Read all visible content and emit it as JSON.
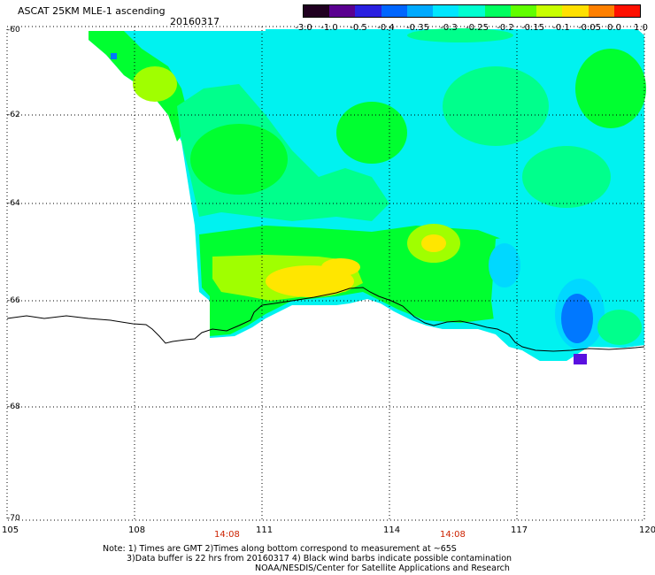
{
  "product_title": "ASCAT 25KM MLE-1 ascending",
  "date": "20160317",
  "colorbar": {
    "labels": [
      "-3.0",
      "-1.0",
      "-0.5",
      "-0.4",
      "-0.35",
      "-0.3",
      "-0.25",
      "-0.2",
      "-0.15",
      "-0.1",
      "-0.05",
      "0.0",
      "1.0"
    ],
    "colors": [
      "#200020",
      "#5a0090",
      "#2a20e0",
      "#0066ff",
      "#00aaff",
      "#00e6ff",
      "#00ffd0",
      "#00ff60",
      "#60ff00",
      "#c8ff00",
      "#ffe000",
      "#ff8000",
      "#ff1000"
    ]
  },
  "axes": {
    "lat_labels": [
      "-60",
      "-62",
      "-64",
      "-66",
      "-68",
      "-70"
    ],
    "lon_labels": [
      "105",
      "108",
      "111",
      "114",
      "117",
      "120"
    ]
  },
  "pass_times": [
    "14:08",
    "14:08"
  ],
  "notes": {
    "line1": "Note: 1) Times are GMT 2)Times along bottom correspond to measurement at ~65S",
    "line2": "3)Data buffer is 22 hrs from 20160317 4) Black wind barbs indicate possible contamination",
    "line3": "NOAA/NESDIS/Center for Satellite Applications and Research"
  },
  "field_legend": {
    "palette": {
      "cyan": "#00ffe6",
      "aqua": "#00f2f0",
      "lightgreen": "#00ff8c",
      "green": "#00ff30",
      "yellowgreen": "#a0ff00",
      "yellow": "#ffe600",
      "lightblue": "#00d8ff",
      "blue": "#0078ff",
      "purple": "#5a10e0"
    }
  }
}
